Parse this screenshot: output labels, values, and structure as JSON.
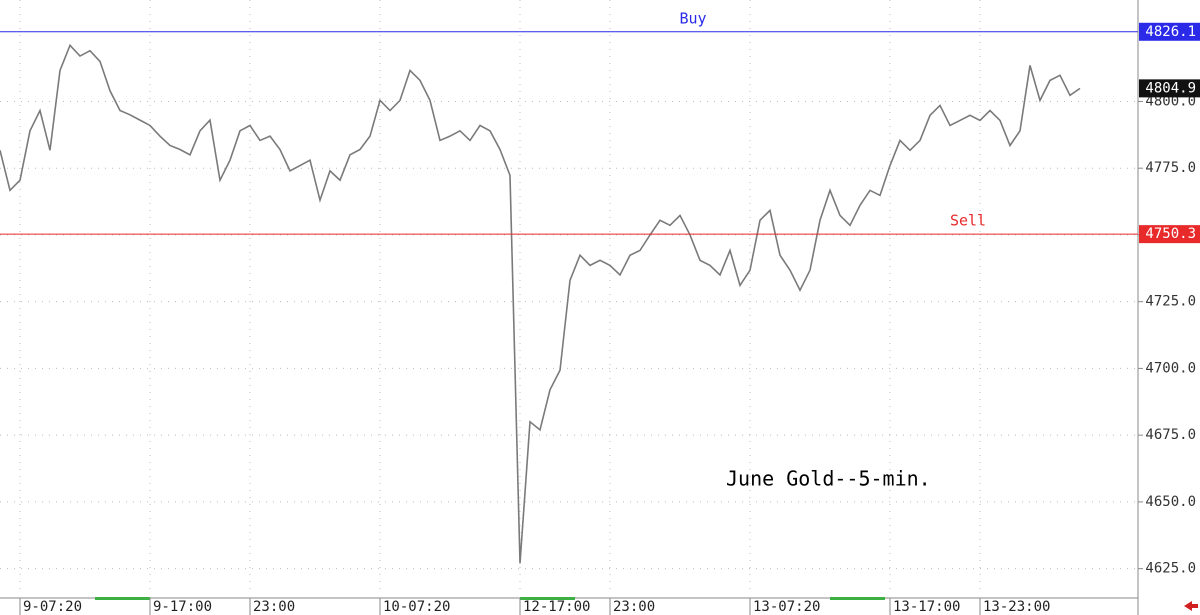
{
  "chart_data": {
    "type": "line",
    "title": "June Gold--5-min.",
    "categories": [
      null,
      null,
      "9-07:20",
      null,
      null,
      null,
      null,
      null,
      null,
      null,
      null,
      null,
      null,
      null,
      null,
      "9-17:00",
      null,
      null,
      null,
      null,
      null,
      null,
      null,
      null,
      null,
      "23:00",
      null,
      null,
      null,
      null,
      null,
      null,
      null,
      null,
      null,
      null,
      null,
      null,
      "10-07:20",
      null,
      null,
      null,
      null,
      null,
      null,
      null,
      null,
      null,
      null,
      null,
      null,
      null,
      "12-17:00",
      null,
      null,
      null,
      null,
      null,
      null,
      null,
      null,
      "23:00",
      null,
      null,
      null,
      null,
      null,
      null,
      null,
      null,
      null,
      null,
      null,
      null,
      null,
      "13-07:20",
      null,
      null,
      null,
      null,
      null,
      null,
      null,
      null,
      null,
      null,
      null,
      null,
      null,
      "13-17:00",
      null,
      null,
      null,
      null,
      null,
      null,
      null,
      null,
      "13-23:00",
      null,
      null,
      null,
      null,
      null,
      null,
      null,
      null,
      null,
      null
    ],
    "series": [
      {
        "color": "#7a7a7a",
        "values": [
          4781.7,
          4766.7,
          4770.5,
          4789,
          4796.6,
          4781.7,
          4811.6,
          4821,
          4817,
          4819,
          4815,
          4804,
          4796.6,
          4795,
          4793,
          4791,
          4787,
          4783.5,
          4782,
          4780,
          4789,
          4793,
          4770.5,
          4778,
          4789,
          4791,
          4785.4,
          4787,
          4782,
          4774,
          4776,
          4778,
          4763,
          4774,
          4770.5,
          4780,
          4782,
          4787,
          4800.4,
          4796.6,
          4800.4,
          4811.6,
          4807.9,
          4800.4,
          4785.4,
          4787,
          4789,
          4785.4,
          4791,
          4789,
          4782,
          4772.3,
          4627,
          4680,
          4677,
          4692,
          4699.3,
          4733,
          4742.4,
          4738.6,
          4740.5,
          4738.6,
          4735,
          4742.4,
          4744.2,
          4750,
          4755.5,
          4753.6,
          4757.3,
          4750,
          4740.5,
          4738.6,
          4735,
          4744.2,
          4731.1,
          4736.8,
          4755.5,
          4759.2,
          4742.4,
          4736.8,
          4729.3,
          4736.8,
          4755.5,
          4766.7,
          4757.3,
          4753.6,
          4761.1,
          4766.7,
          4764.8,
          4776,
          4785.4,
          4781.7,
          4785.4,
          4794.8,
          4798.5,
          4791,
          4792.9,
          4794.8,
          4792.9,
          4796.6,
          4792.9,
          4783.5,
          4789,
          4813.5,
          4800.4,
          4807.9,
          4809.8,
          4802.3,
          4804.9
        ]
      }
    ],
    "ylim": [
      4617,
      4838
    ],
    "yticks": [
      {
        "value": 4625,
        "label": "4625.0"
      },
      {
        "value": 4650,
        "label": "4650.0"
      },
      {
        "value": 4675,
        "label": "4675.0"
      },
      {
        "value": 4700,
        "label": "4700.0"
      },
      {
        "value": 4725,
        "label": "4725.0"
      },
      {
        "value": 4750,
        "label": "4750.0"
      },
      {
        "value": 4775,
        "label": "4775.0"
      },
      {
        "value": 4800,
        "label": "4800.0"
      }
    ],
    "grid": true,
    "hlines": [
      {
        "label": "Buy",
        "value": 4826.1,
        "color": "#2a2ae8"
      },
      {
        "label": "Sell",
        "value": 4750.3,
        "color": "#e82a2a"
      }
    ],
    "last_price": 4804.9
  }
}
